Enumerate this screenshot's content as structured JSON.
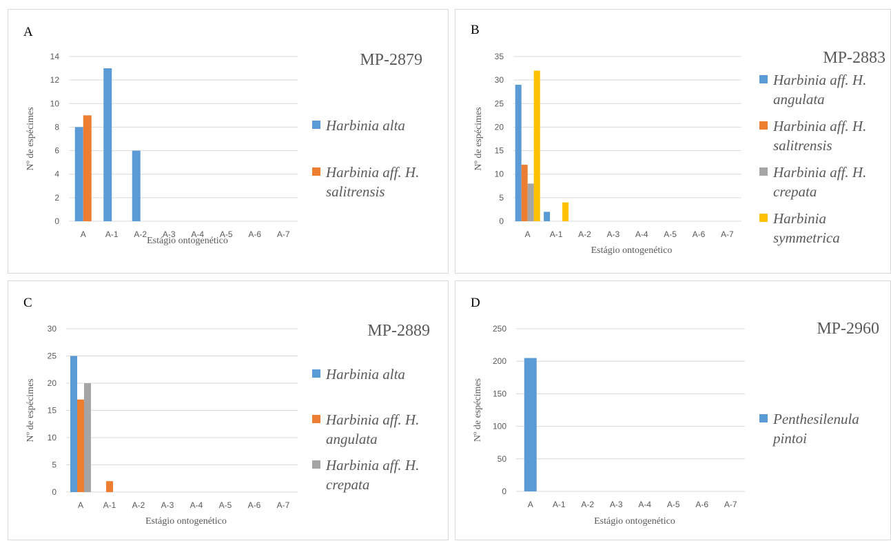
{
  "colors": {
    "blue": "#5b9bd5",
    "orange": "#ed7d31",
    "gray": "#a5a5a5",
    "yellow": "#ffc000",
    "grid": "#d9d9d9",
    "text": "#595959"
  },
  "chart_data": [
    {
      "type": "bar",
      "panel_label": "A",
      "title": "MP-2879",
      "xlabel": "Estágio ontogenético",
      "ylabel": "Nº de espécimes",
      "categories": [
        "A",
        "A-1",
        "A-2",
        "A-3",
        "A-4",
        "A-5",
        "A-6",
        "A-7"
      ],
      "ylim": [
        0,
        14
      ],
      "yticks": [
        0,
        2,
        4,
        6,
        8,
        10,
        12,
        14
      ],
      "grid": true,
      "legend_position": "right",
      "series": [
        {
          "name": "Harbinia alta",
          "legend_lines": [
            "Harbinia alta"
          ],
          "color": "#5b9bd5",
          "values": [
            8,
            13,
            6,
            0,
            0,
            0,
            0,
            0
          ]
        },
        {
          "name": "Harbinia aff. H. salitrensis",
          "legend_lines": [
            "Harbinia aff. H.",
            "salitrensis"
          ],
          "color": "#ed7d31",
          "values": [
            9,
            0,
            0,
            0,
            0,
            0,
            0,
            0
          ]
        }
      ]
    },
    {
      "type": "bar",
      "panel_label": "B",
      "title": "MP-2883",
      "xlabel": "Estágio ontogenético",
      "ylabel": "Nº de espécimes",
      "categories": [
        "A",
        "A-1",
        "A-2",
        "A-3",
        "A-4",
        "A-5",
        "A-6",
        "A-7"
      ],
      "ylim": [
        0,
        35
      ],
      "yticks": [
        0,
        5,
        10,
        15,
        20,
        25,
        30,
        35
      ],
      "grid": true,
      "legend_position": "right",
      "series": [
        {
          "name": "Harbinia aff. H. angulata",
          "legend_lines": [
            "Harbinia aff. H.",
            "angulata"
          ],
          "color": "#5b9bd5",
          "values": [
            29,
            2,
            0,
            0,
            0,
            0,
            0,
            0
          ]
        },
        {
          "name": "Harbinia aff. H. salitrensis",
          "legend_lines": [
            "Harbinia aff. H.",
            "salitrensis"
          ],
          "color": "#ed7d31",
          "values": [
            12,
            0,
            0,
            0,
            0,
            0,
            0,
            0
          ]
        },
        {
          "name": "Harbinia aff. H. crepata",
          "legend_lines": [
            "Harbinia aff. H.",
            "crepata"
          ],
          "color": "#a5a5a5",
          "values": [
            8,
            0,
            0,
            0,
            0,
            0,
            0,
            0
          ]
        },
        {
          "name": "Harbinia symmetrica",
          "legend_lines": [
            "Harbinia",
            "symmetrica"
          ],
          "color": "#ffc000",
          "values": [
            32,
            4,
            0,
            0,
            0,
            0,
            0,
            0
          ]
        }
      ]
    },
    {
      "type": "bar",
      "panel_label": "C",
      "title": "MP-2889",
      "xlabel": "Estágio ontogenético",
      "ylabel": "Nº de espécimes",
      "categories": [
        "A",
        "A-1",
        "A-2",
        "A-3",
        "A-4",
        "A-5",
        "A-6",
        "A-7"
      ],
      "ylim": [
        0,
        30
      ],
      "yticks": [
        0,
        5,
        10,
        15,
        20,
        25,
        30
      ],
      "grid": true,
      "legend_position": "right",
      "series": [
        {
          "name": "Harbinia alta",
          "legend_lines": [
            "Harbinia alta"
          ],
          "color": "#5b9bd5",
          "values": [
            25,
            0,
            0,
            0,
            0,
            0,
            0,
            0
          ]
        },
        {
          "name": "Harbinia aff. H. angulata",
          "legend_lines": [
            "Harbinia aff. H.",
            "angulata"
          ],
          "color": "#ed7d31",
          "values": [
            17,
            2,
            0,
            0,
            0,
            0,
            0,
            0
          ]
        },
        {
          "name": "Harbinia aff. H. crepata",
          "legend_lines": [
            "Harbinia aff. H.",
            "crepata"
          ],
          "color": "#a5a5a5",
          "values": [
            20,
            0,
            0,
            0,
            0,
            0,
            0,
            0
          ]
        }
      ]
    },
    {
      "type": "bar",
      "panel_label": "D",
      "title": "MP-2960",
      "xlabel": "Estágio ontogenético",
      "ylabel": "Nº de espécimes",
      "categories": [
        "A",
        "A-1",
        "A-2",
        "A-3",
        "A-4",
        "A-5",
        "A-6",
        "A-7"
      ],
      "ylim": [
        0,
        250
      ],
      "yticks": [
        0,
        50,
        100,
        150,
        200,
        250
      ],
      "grid": true,
      "legend_position": "right",
      "series": [
        {
          "name": "Penthesilenula pintoi",
          "legend_lines": [
            "Penthesilenula",
            "pintoi"
          ],
          "color": "#5b9bd5",
          "values": [
            205,
            0,
            0,
            0,
            0,
            0,
            0,
            0
          ]
        }
      ]
    }
  ]
}
